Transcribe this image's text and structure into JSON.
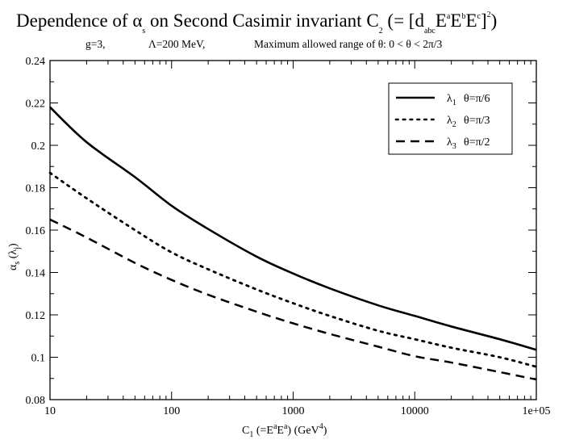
{
  "chart_data": {
    "type": "line",
    "title": {
      "text1": "Dependence of ",
      "alpha": "α",
      "alpha_sub": "s",
      "text2": " on Second Casimir invariant C",
      "c_sub": "2",
      "text3": " (= [d",
      "d_sub": "abc",
      "e1": "E",
      "e1_sup": "a",
      "e2": "E",
      "e2_sup": "b",
      "e3": "E",
      "e3_sup": "c",
      "bracket": "]",
      "bracket_sup": "2",
      "close": ")"
    },
    "subtitle": {
      "g": "g=3,",
      "lambda": "Λ=200 MeV,",
      "range": "Maximum allowed range of θ:    0 < θ < 2π/3"
    },
    "xlabel": {
      "c": "C",
      "c_sub": "1",
      "text": " (=E",
      "sup1": "a",
      "e": "E",
      "sup2": "a",
      "units": ")  (GeV",
      "units_sup": "4",
      "units_close": ")"
    },
    "ylabel": {
      "alpha": "α",
      "alpha_sub": "s",
      "paren": " (λ",
      "j_sub": "j",
      "close": ")"
    },
    "x_scale": "log",
    "xlim": [
      10,
      100000
    ],
    "ylim": [
      0.08,
      0.24
    ],
    "x_ticks": [
      10,
      100,
      1000,
      10000,
      100000
    ],
    "x_tick_labels": [
      "10",
      "100",
      "1000",
      "10000",
      "1e+05"
    ],
    "y_ticks": [
      0.08,
      0.1,
      0.12,
      0.14,
      0.16,
      0.18,
      0.2,
      0.22,
      0.24
    ],
    "y_tick_labels": [
      "0.08",
      "0.1",
      "0.12",
      "0.14",
      "0.16",
      "0.18",
      "0.2",
      "0.22",
      "0.24"
    ],
    "x": [
      10,
      20,
      50,
      100,
      200,
      500,
      1000,
      2000,
      5000,
      10000,
      20000,
      50000,
      100000
    ],
    "series": [
      {
        "name": "λ1",
        "lambda": "λ",
        "sub": "1",
        "theta": "θ=π/6",
        "style": "solid",
        "values": [
          0.218,
          0.2015,
          0.185,
          0.1715,
          0.1605,
          0.1475,
          0.1395,
          0.1325,
          0.1245,
          0.1195,
          0.1145,
          0.1085,
          0.1035
        ]
      },
      {
        "name": "λ2",
        "lambda": "λ",
        "sub": "2",
        "theta": "θ=π/3",
        "style": "dotted",
        "values": [
          0.187,
          0.175,
          0.16,
          0.1495,
          0.1415,
          0.132,
          0.1255,
          0.1195,
          0.1125,
          0.1085,
          0.1045,
          0.1,
          0.0955
        ]
      },
      {
        "name": "λ3",
        "lambda": "λ",
        "sub": "3",
        "theta": "θ=π/2",
        "style": "dashed",
        "values": [
          0.165,
          0.1565,
          0.1445,
          0.1365,
          0.1295,
          0.1215,
          0.116,
          0.111,
          0.105,
          0.1005,
          0.0975,
          0.093,
          0.0895
        ]
      }
    ],
    "legend_position": "top-right",
    "grid": false
  }
}
